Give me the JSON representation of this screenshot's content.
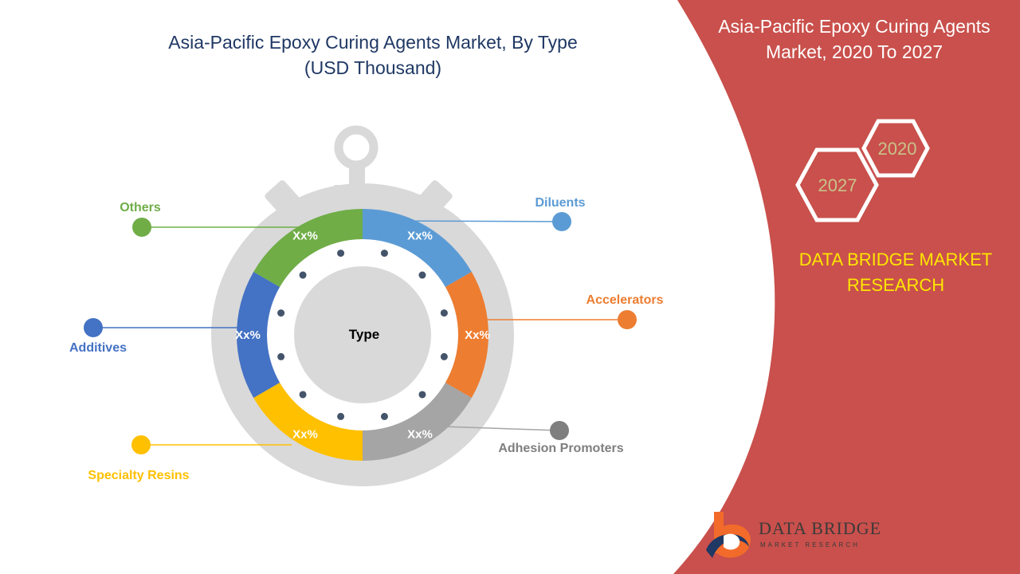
{
  "chart_data": {
    "type": "pie",
    "title": [
      "Asia-Pacific Epoxy Curing Agents Market, By Type",
      "(USD Thousand)"
    ],
    "center_label": "Type",
    "categories": [
      "Diluents",
      "Accelerators",
      "Adhesion Promoters",
      "Specialty Resins",
      "Additives",
      "Others"
    ],
    "data_labels": [
      "Xx%",
      "Xx%",
      "Xx%",
      "Xx%",
      "Xx%",
      "Xx%"
    ],
    "values": [
      1,
      1,
      1,
      1,
      1,
      1
    ],
    "colors": [
      "#5b9bd5",
      "#ed7d31",
      "#a5a5a5",
      "#ffc000",
      "#4472c4",
      "#70ad47"
    ]
  },
  "side_panel": {
    "title": [
      "Asia-Pacific Epoxy Curing Agents",
      "Market, 2020 To 2027"
    ],
    "years": [
      "2020",
      "2027"
    ],
    "brand": [
      "DATA BRIDGE MARKET",
      "RESEARCH"
    ],
    "background": "#c9504c"
  },
  "logo": {
    "name": "DATA BRIDGE",
    "tagline": "MARKET RESEARCH"
  }
}
